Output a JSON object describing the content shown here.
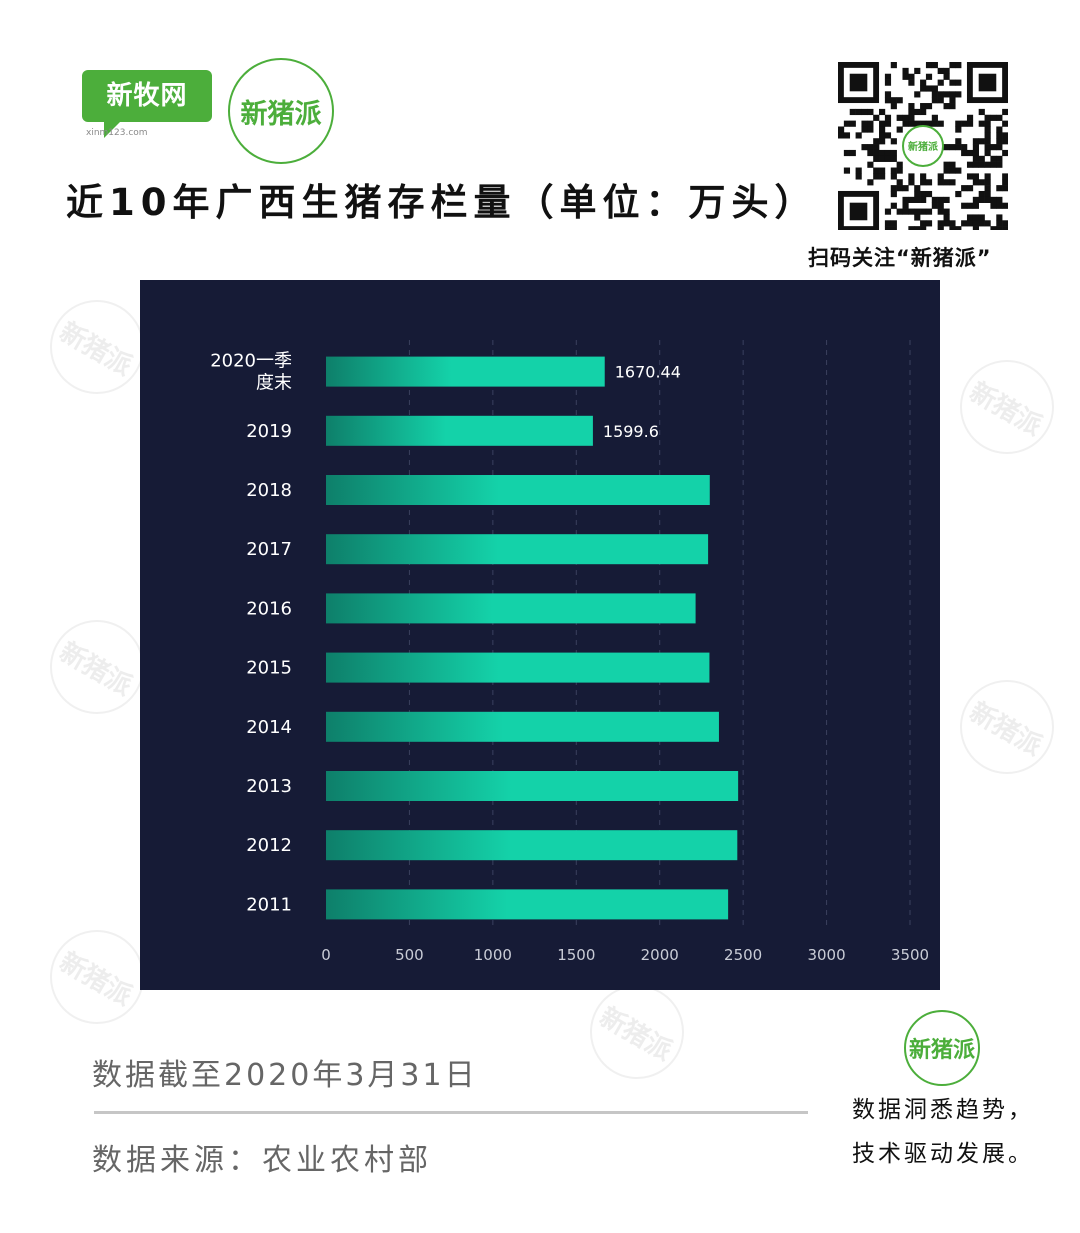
{
  "brand": {
    "xinmu_logo_text": "新牧网",
    "xinmu_site": "xinm123.com",
    "xinzhupai_logo_text": "新猪派"
  },
  "title": "近10年广西生猪存栏量（单位：万头）",
  "qr": {
    "caption": "扫码关注“新猪派”",
    "center_label": "新猪派"
  },
  "watermark_text": "新猪派",
  "chart_data": {
    "type": "bar",
    "orientation": "horizontal",
    "categories": [
      "2020一季度末",
      "2019",
      "2018",
      "2017",
      "2016",
      "2015",
      "2014",
      "2013",
      "2012",
      "2011"
    ],
    "category_lines": [
      [
        "2020一季",
        "度末"
      ],
      [
        "2019"
      ],
      [
        "2018"
      ],
      [
        "2017"
      ],
      [
        "2016"
      ],
      [
        "2015"
      ],
      [
        "2014"
      ],
      [
        "2013"
      ],
      [
        "2012"
      ],
      [
        "2011"
      ]
    ],
    "values": [
      1670.44,
      1599.6,
      2300,
      2290,
      2215,
      2298,
      2355,
      2470,
      2465,
      2410
    ],
    "data_labels": [
      "1670.44",
      "1599.6",
      "",
      "",
      "",
      "",
      "",
      "",
      "",
      ""
    ],
    "xlim": [
      0,
      3500
    ],
    "xticks": [
      0,
      500,
      1000,
      1500,
      2000,
      2500,
      3000,
      3500
    ],
    "grid": "vertical dashed",
    "colors": {
      "panel_bg": "#161b36",
      "bar_start": "#0e7f6a",
      "bar_end": "#14d2a9",
      "text": "#ffffff",
      "tick_text": "#c9ccd6",
      "grid": "#3a405e"
    }
  },
  "footer": {
    "date_note": "数据截至2020年3月31日",
    "source": "数据来源：农业农村部",
    "slogan_line1": "数据洞悉趋势，",
    "slogan_line2": "技术驱动发展。",
    "logo_text": "新猪派"
  },
  "colors": {
    "brand_green": "#4cae3b",
    "title_text": "#111111",
    "footer_text": "#666666"
  }
}
